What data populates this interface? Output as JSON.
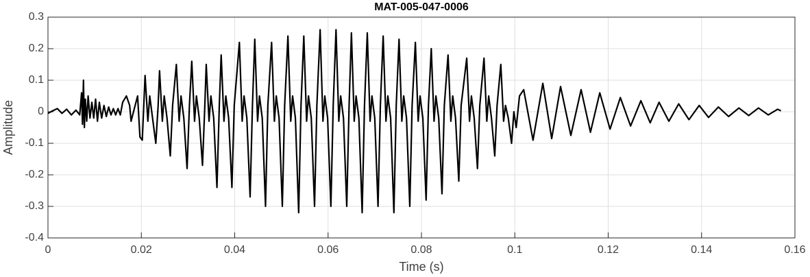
{
  "chart_data": {
    "type": "line",
    "title": "MAT-005-047-0006",
    "x_label": "Time (s)",
    "y_label": "Amplitude",
    "xlim": [
      0,
      0.16
    ],
    "ylim": [
      -0.4,
      0.3
    ],
    "xticks": [
      0,
      0.02,
      0.04,
      0.06,
      0.08,
      0.1,
      0.12,
      0.14,
      0.16
    ],
    "yticks": [
      0.3,
      0.2,
      0.1,
      0,
      -0.1,
      -0.2,
      -0.3,
      -0.4
    ],
    "grid": true,
    "color": "#000000",
    "x": [
      0,
      0.001,
      0.002,
      0.003,
      0.004,
      0.005,
      0.006,
      0.0068,
      0.0072,
      0.0074,
      0.0076,
      0.0078,
      0.008,
      0.0083,
      0.0086,
      0.009,
      0.0094,
      0.0098,
      0.0102,
      0.0106,
      0.011,
      0.0115,
      0.012,
      0.0125,
      0.013,
      0.0135,
      0.014,
      0.0145,
      0.015,
      0.0155,
      0.016,
      0.0168,
      0.0175,
      0.0178,
      0.0185,
      0.0192,
      0.0197,
      0.0202,
      0.0208,
      0.0214,
      0.0218,
      0.0224,
      0.0231,
      0.0236,
      0.0239,
      0.0245,
      0.0249,
      0.0255,
      0.0262,
      0.0267,
      0.0275,
      0.0281,
      0.0285,
      0.0291,
      0.0298,
      0.0303,
      0.0308,
      0.0314,
      0.0318,
      0.0324,
      0.0331,
      0.0336,
      0.0339,
      0.0345,
      0.0349,
      0.0355,
      0.0362,
      0.0367,
      0.0371,
      0.0377,
      0.0381,
      0.0387,
      0.0394,
      0.0399,
      0.041,
      0.0416,
      0.042,
      0.0426,
      0.0433,
      0.0438,
      0.0443,
      0.0449,
      0.0453,
      0.0459,
      0.0466,
      0.0471,
      0.0479,
      0.0485,
      0.0489,
      0.0495,
      0.0502,
      0.0507,
      0.0514,
      0.052,
      0.0524,
      0.053,
      0.0537,
      0.0542,
      0.0548,
      0.0554,
      0.0558,
      0.0564,
      0.0571,
      0.0576,
      0.0583,
      0.0589,
      0.0593,
      0.0599,
      0.0606,
      0.0611,
      0.0617,
      0.0623,
      0.0627,
      0.0633,
      0.064,
      0.0645,
      0.065,
      0.0656,
      0.066,
      0.0666,
      0.0673,
      0.0678,
      0.0684,
      0.069,
      0.0694,
      0.07,
      0.0707,
      0.0712,
      0.0718,
      0.0724,
      0.0728,
      0.0734,
      0.0741,
      0.0746,
      0.0752,
      0.0758,
      0.0762,
      0.0768,
      0.0775,
      0.078,
      0.0787,
      0.0793,
      0.0797,
      0.0803,
      0.081,
      0.0815,
      0.0821,
      0.0827,
      0.0831,
      0.0837,
      0.0844,
      0.0849,
      0.0857,
      0.0863,
      0.0867,
      0.0873,
      0.088,
      0.0885,
      0.0897,
      0.0903,
      0.0907,
      0.0913,
      0.092,
      0.0925,
      0.0934,
      0.094,
      0.0944,
      0.095,
      0.0957,
      0.0962,
      0.097,
      0.0976,
      0.098,
      0.0986,
      0.0993,
      0.0998,
      0.1003,
      0.101,
      0.1019,
      0.1039,
      0.106,
      0.1079,
      0.1098,
      0.112,
      0.1142,
      0.1162,
      0.1182,
      0.1204,
      0.1226,
      0.1248,
      0.127,
      0.129,
      0.1309,
      0.133,
      0.1351,
      0.1373,
      0.1395,
      0.1415,
      0.1436,
      0.1458,
      0.148,
      0.1501,
      0.1522,
      0.1543,
      0.1563,
      0.157
    ],
    "values": [
      -0.005,
      0.003,
      0.01,
      -0.005,
      0.008,
      -0.01,
      0.005,
      -0.01,
      0.06,
      -0.04,
      0.1,
      -0.05,
      0.04,
      -0.03,
      0.05,
      -0.02,
      0.03,
      -0.02,
      0.04,
      -0.03,
      0.03,
      -0.02,
      0.02,
      -0.015,
      0.015,
      -0.01,
      0.01,
      -0.01,
      0.01,
      -0.01,
      0.03,
      0.05,
      0.02,
      -0.03,
      0.01,
      0.05,
      -0.08,
      -0.09,
      0.115,
      -0.03,
      0.05,
      -0.02,
      -0.1,
      0.02,
      0.13,
      -0.03,
      0.05,
      -0.02,
      -0.14,
      0.02,
      0.15,
      -0.03,
      0.05,
      -0.02,
      -0.18,
      0.02,
      0.16,
      -0.03,
      0.05,
      -0.02,
      -0.17,
      0.02,
      0.15,
      -0.03,
      0.05,
      -0.02,
      -0.24,
      0.02,
      0.18,
      -0.03,
      0.05,
      -0.02,
      -0.24,
      0.02,
      0.22,
      -0.03,
      0.05,
      -0.02,
      -0.27,
      0.02,
      0.23,
      -0.03,
      0.05,
      -0.02,
      -0.3,
      0.02,
      0.22,
      -0.03,
      0.05,
      -0.02,
      -0.3,
      0.02,
      0.24,
      -0.03,
      0.05,
      -0.02,
      -0.32,
      0.02,
      0.24,
      -0.03,
      0.05,
      -0.02,
      -0.3,
      0.02,
      0.26,
      -0.03,
      0.05,
      -0.02,
      -0.3,
      0.02,
      0.26,
      -0.03,
      0.05,
      -0.02,
      -0.3,
      0.02,
      0.25,
      -0.03,
      0.05,
      -0.02,
      -0.32,
      0.02,
      0.25,
      -0.03,
      0.05,
      -0.02,
      -0.3,
      0.02,
      0.24,
      -0.03,
      0.05,
      -0.02,
      -0.32,
      0.02,
      0.23,
      -0.03,
      0.05,
      -0.02,
      -0.3,
      0.02,
      0.22,
      -0.03,
      0.05,
      -0.02,
      -0.28,
      0.02,
      0.2,
      -0.03,
      0.05,
      -0.02,
      -0.26,
      0.02,
      0.18,
      -0.03,
      0.05,
      -0.02,
      -0.22,
      0.02,
      0.17,
      -0.03,
      0.05,
      -0.02,
      -0.18,
      0.02,
      0.17,
      -0.03,
      0.05,
      -0.02,
      -0.14,
      0.02,
      0.15,
      -0.03,
      0.02,
      -0.02,
      -0.1,
      0,
      -0.05,
      0.05,
      0.07,
      -0.09,
      0.09,
      -0.085,
      0.08,
      -0.075,
      0.07,
      -0.065,
      0.06,
      -0.055,
      0.045,
      -0.045,
      0.035,
      -0.035,
      0.03,
      -0.03,
      0.025,
      -0.025,
      0.02,
      -0.018,
      0.015,
      -0.015,
      0.012,
      -0.012,
      0.012,
      -0.01,
      0.008,
      0.003
    ]
  }
}
